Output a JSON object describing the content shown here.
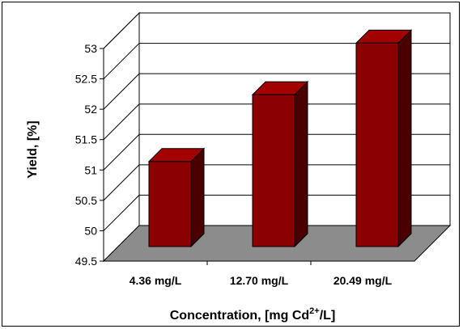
{
  "chart_data": {
    "type": "bar",
    "style": "3d-column",
    "categories": [
      "4.36 mg/L",
      "12.70 mg/L",
      "20.49 mg/L"
    ],
    "values": [
      50.9,
      52.0,
      52.85
    ],
    "ylabel": "Yield, [%]",
    "xlabel": {
      "prefix": "Concentration, [mg Cd",
      "superscript": "2+",
      "suffix": "/L]"
    },
    "ylim": [
      49.5,
      53
    ],
    "yticks": [
      "49.5",
      "50",
      "50.5",
      "51",
      "51.5",
      "52",
      "52.5",
      "53"
    ],
    "grid": true,
    "legend": "none",
    "colors": {
      "bar_front": "#8b0000",
      "bar_side": "#4a0000",
      "bar_top": "#a30000",
      "floor": "#8c8c8c",
      "grid": "#000000"
    }
  }
}
